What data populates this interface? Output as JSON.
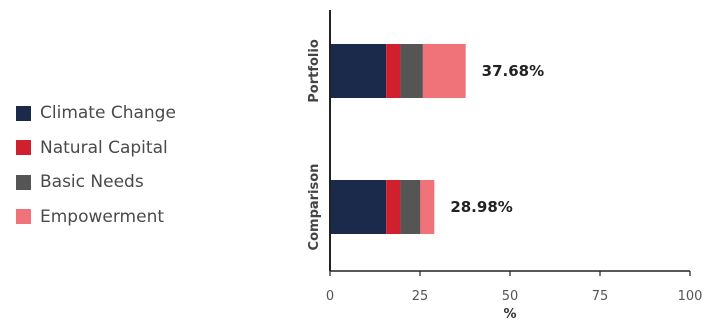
{
  "chart_data": {
    "type": "bar",
    "orientation": "horizontal",
    "stacked": true,
    "categories": [
      "Portfolio",
      "Comparison"
    ],
    "series": [
      {
        "name": "Climate Change",
        "color": "#1b2a4a",
        "values": [
          15.6,
          15.6
        ]
      },
      {
        "name": "Natural Capital",
        "color": "#d0202e",
        "values": [
          4.0,
          4.0
        ]
      },
      {
        "name": "Basic Needs",
        "color": "#555555",
        "values": [
          6.2,
          5.5
        ]
      },
      {
        "name": "Empowerment",
        "color": "#ef7378",
        "values": [
          11.88,
          3.88
        ]
      }
    ],
    "totals": [
      "37.68%",
      "28.98%"
    ],
    "xlabel": "%",
    "xlim": [
      0,
      100
    ],
    "xticks": [
      0,
      25,
      50,
      75,
      100
    ],
    "grid": false,
    "legend_position": "left"
  }
}
